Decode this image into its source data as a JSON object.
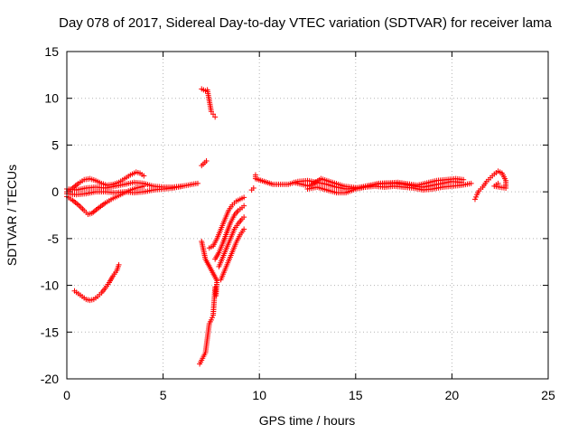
{
  "chart_data": {
    "type": "scatter",
    "title": "Day 078 of 2017, Sidereal Day-to-day VTEC variation (SDTVAR) for receiver lama",
    "xlabel": "GPS time / hours",
    "ylabel": "SDTVAR / TECUs",
    "xlim": [
      0,
      25
    ],
    "ylim": [
      -20,
      15
    ],
    "xticks": [
      0,
      5,
      10,
      15,
      20,
      25
    ],
    "yticks": [
      -20,
      -15,
      -10,
      -5,
      0,
      5,
      10,
      15
    ],
    "xtick_labels": [
      "0",
      "5",
      "10",
      "15",
      "20",
      "25"
    ],
    "ytick_labels": [
      "-20",
      "-15",
      "-10",
      "-5",
      "0",
      "5",
      "10",
      "15"
    ],
    "grid": true,
    "marker": "+",
    "color": "#ff0000",
    "series": [
      {
        "name": "arc-low-left",
        "points": [
          [
            0.4,
            -10.6
          ],
          [
            0.6,
            -10.9
          ],
          [
            0.8,
            -11.2
          ],
          [
            1.0,
            -11.5
          ],
          [
            1.2,
            -11.6
          ],
          [
            1.4,
            -11.5
          ],
          [
            1.6,
            -11.2
          ],
          [
            1.8,
            -10.8
          ],
          [
            2.0,
            -10.3
          ],
          [
            2.2,
            -9.7
          ],
          [
            2.4,
            -9.0
          ],
          [
            2.6,
            -8.4
          ],
          [
            2.7,
            -7.8
          ]
        ]
      },
      {
        "name": "arc-top-left",
        "points": [
          [
            0.0,
            0.0
          ],
          [
            0.3,
            0.4
          ],
          [
            0.6,
            0.9
          ],
          [
            0.9,
            1.3
          ],
          [
            1.2,
            1.4
          ],
          [
            1.5,
            1.2
          ],
          [
            1.8,
            0.9
          ],
          [
            2.1,
            0.7
          ],
          [
            2.4,
            0.8
          ],
          [
            2.7,
            1.0
          ],
          [
            3.0,
            1.4
          ],
          [
            3.3,
            1.8
          ],
          [
            3.6,
            2.1
          ],
          [
            3.8,
            2.0
          ],
          [
            4.0,
            1.7
          ]
        ]
      },
      {
        "name": "arc-mid-left",
        "points": [
          [
            0.0,
            -0.5
          ],
          [
            0.3,
            -0.9
          ],
          [
            0.6,
            -1.4
          ],
          [
            0.9,
            -2.0
          ],
          [
            1.1,
            -2.4
          ],
          [
            1.3,
            -2.3
          ],
          [
            1.6,
            -1.8
          ],
          [
            2.0,
            -1.2
          ],
          [
            2.4,
            -0.7
          ],
          [
            2.8,
            -0.3
          ],
          [
            3.2,
            0.1
          ],
          [
            3.6,
            0.4
          ],
          [
            4.0,
            0.6
          ]
        ]
      },
      {
        "name": "arc-flat-left",
        "points": [
          [
            0.0,
            -0.2
          ],
          [
            0.5,
            -0.3
          ],
          [
            1.0,
            -0.2
          ],
          [
            1.5,
            0.0
          ],
          [
            2.0,
            0.0
          ],
          [
            2.5,
            -0.1
          ],
          [
            3.0,
            0.0
          ],
          [
            3.5,
            -0.1
          ],
          [
            4.0,
            0.0
          ],
          [
            4.5,
            0.2
          ],
          [
            5.0,
            0.3
          ],
          [
            5.5,
            0.4
          ],
          [
            6.0,
            0.6
          ],
          [
            6.5,
            0.8
          ],
          [
            6.8,
            0.9
          ]
        ]
      },
      {
        "name": "arc-upper-left",
        "points": [
          [
            0.0,
            0.3
          ],
          [
            0.5,
            0.2
          ],
          [
            1.0,
            0.4
          ],
          [
            1.5,
            0.5
          ],
          [
            2.0,
            0.4
          ],
          [
            2.5,
            0.6
          ],
          [
            3.0,
            0.8
          ],
          [
            3.5,
            1.0
          ],
          [
            4.0,
            0.9
          ],
          [
            4.5,
            0.6
          ],
          [
            5.0,
            0.5
          ],
          [
            5.5,
            0.5
          ],
          [
            6.0,
            0.6
          ]
        ]
      },
      {
        "name": "spike-high",
        "points": [
          [
            7.0,
            11.0
          ],
          [
            7.1,
            10.9
          ],
          [
            7.2,
            10.8
          ],
          [
            7.3,
            10.9
          ],
          [
            7.5,
            8.6
          ],
          [
            7.6,
            8.3
          ],
          [
            7.7,
            8.0
          ]
        ]
      },
      {
        "name": "spike-mid",
        "points": [
          [
            7.0,
            2.8
          ],
          [
            7.25,
            3.3
          ]
        ]
      },
      {
        "name": "spike-low",
        "points": [
          [
            6.9,
            -18.4
          ],
          [
            7.0,
            -18.0
          ],
          [
            7.1,
            -17.6
          ],
          [
            7.2,
            -17.2
          ],
          [
            7.4,
            -14.1
          ],
          [
            7.5,
            -13.7
          ],
          [
            7.6,
            -13.2
          ],
          [
            7.7,
            -10.2
          ],
          [
            7.75,
            -11.1
          ],
          [
            7.8,
            -9.5
          ],
          [
            7.2,
            -7.2
          ],
          [
            7.0,
            -5.3
          ]
        ]
      },
      {
        "name": "rise-1",
        "points": [
          [
            7.4,
            -6.0
          ],
          [
            7.6,
            -5.8
          ],
          [
            7.8,
            -5.0
          ],
          [
            8.0,
            -4.0
          ],
          [
            8.2,
            -3.0
          ],
          [
            8.4,
            -2.0
          ],
          [
            8.6,
            -1.4
          ],
          [
            8.8,
            -1.0
          ],
          [
            9.0,
            -0.8
          ],
          [
            9.2,
            -0.6
          ]
        ]
      },
      {
        "name": "rise-2",
        "points": [
          [
            7.7,
            -7.2
          ],
          [
            7.9,
            -6.5
          ],
          [
            8.1,
            -5.5
          ],
          [
            8.3,
            -4.4
          ],
          [
            8.5,
            -3.3
          ],
          [
            8.7,
            -2.5
          ],
          [
            8.9,
            -2.0
          ],
          [
            9.1,
            -1.7
          ],
          [
            9.2,
            -1.5
          ]
        ]
      },
      {
        "name": "rise-3",
        "points": [
          [
            7.9,
            -8.0
          ],
          [
            8.1,
            -7.0
          ],
          [
            8.3,
            -6.0
          ],
          [
            8.5,
            -5.0
          ],
          [
            8.7,
            -4.0
          ],
          [
            8.9,
            -3.4
          ],
          [
            9.1,
            -2.9
          ],
          [
            9.2,
            -2.7
          ]
        ]
      },
      {
        "name": "rise-4",
        "points": [
          [
            8.0,
            -9.4
          ],
          [
            8.2,
            -8.4
          ],
          [
            8.4,
            -7.4
          ],
          [
            8.6,
            -6.4
          ],
          [
            8.8,
            -5.4
          ],
          [
            9.0,
            -4.6
          ],
          [
            9.2,
            -4.0
          ]
        ]
      },
      {
        "name": "right-band-a",
        "points": [
          [
            9.8,
            1.8
          ],
          [
            9.8,
            1.4
          ],
          [
            10.7,
            0.8
          ],
          [
            11.5,
            0.8
          ],
          [
            12.0,
            1.1
          ],
          [
            12.5,
            1.2
          ],
          [
            13.0,
            1.0
          ],
          [
            13.5,
            0.8
          ],
          [
            14.0,
            0.5
          ],
          [
            14.5,
            0.3
          ],
          [
            15.0,
            0.4
          ],
          [
            15.5,
            0.6
          ],
          [
            16.0,
            0.8
          ],
          [
            16.5,
            0.9
          ],
          [
            17.0,
            0.9
          ],
          [
            17.5,
            0.8
          ],
          [
            18.0,
            0.6
          ],
          [
            18.5,
            0.5
          ],
          [
            19.0,
            0.7
          ],
          [
            19.5,
            0.9
          ],
          [
            20.0,
            1.1
          ],
          [
            20.5,
            1.0
          ]
        ]
      },
      {
        "name": "right-band-b",
        "points": [
          [
            12.5,
            0.3
          ],
          [
            13.0,
            0.5
          ],
          [
            13.5,
            0.2
          ],
          [
            14.0,
            -0.1
          ],
          [
            14.5,
            -0.1
          ],
          [
            15.0,
            0.3
          ],
          [
            15.5,
            0.5
          ],
          [
            16.0,
            0.6
          ],
          [
            16.5,
            0.5
          ],
          [
            17.0,
            0.6
          ],
          [
            17.5,
            0.5
          ],
          [
            18.0,
            0.4
          ],
          [
            18.5,
            0.2
          ],
          [
            19.0,
            0.3
          ],
          [
            19.5,
            0.5
          ],
          [
            20.0,
            0.6
          ],
          [
            20.5,
            0.7
          ],
          [
            21.0,
            0.9
          ]
        ]
      },
      {
        "name": "right-band-c",
        "points": [
          [
            11.8,
            1.0
          ],
          [
            12.2,
            0.8
          ],
          [
            12.6,
            0.6
          ],
          [
            13.2,
            1.4
          ],
          [
            13.8,
            1.0
          ],
          [
            14.4,
            0.6
          ],
          [
            15.2,
            0.4
          ],
          [
            16.2,
            0.9
          ],
          [
            17.2,
            1.0
          ],
          [
            18.2,
            0.7
          ],
          [
            19.2,
            1.2
          ],
          [
            20.2,
            1.4
          ],
          [
            20.6,
            1.3
          ]
        ]
      },
      {
        "name": "right-isolated",
        "points": [
          [
            9.6,
            0.2
          ],
          [
            9.7,
            0.4
          ]
        ]
      },
      {
        "name": "right-end",
        "points": [
          [
            21.2,
            -0.8
          ],
          [
            21.3,
            -0.3
          ],
          [
            21.4,
            0.1
          ],
          [
            21.6,
            0.5
          ],
          [
            21.8,
            1.1
          ],
          [
            22.0,
            1.5
          ],
          [
            22.2,
            1.9
          ],
          [
            22.4,
            2.2
          ],
          [
            22.6,
            2.0
          ],
          [
            22.7,
            1.6
          ],
          [
            22.8,
            1.2
          ],
          [
            22.8,
            0.8
          ],
          [
            22.8,
            0.4
          ],
          [
            22.2,
            0.6
          ],
          [
            22.4,
            0.9
          ]
        ]
      }
    ]
  }
}
